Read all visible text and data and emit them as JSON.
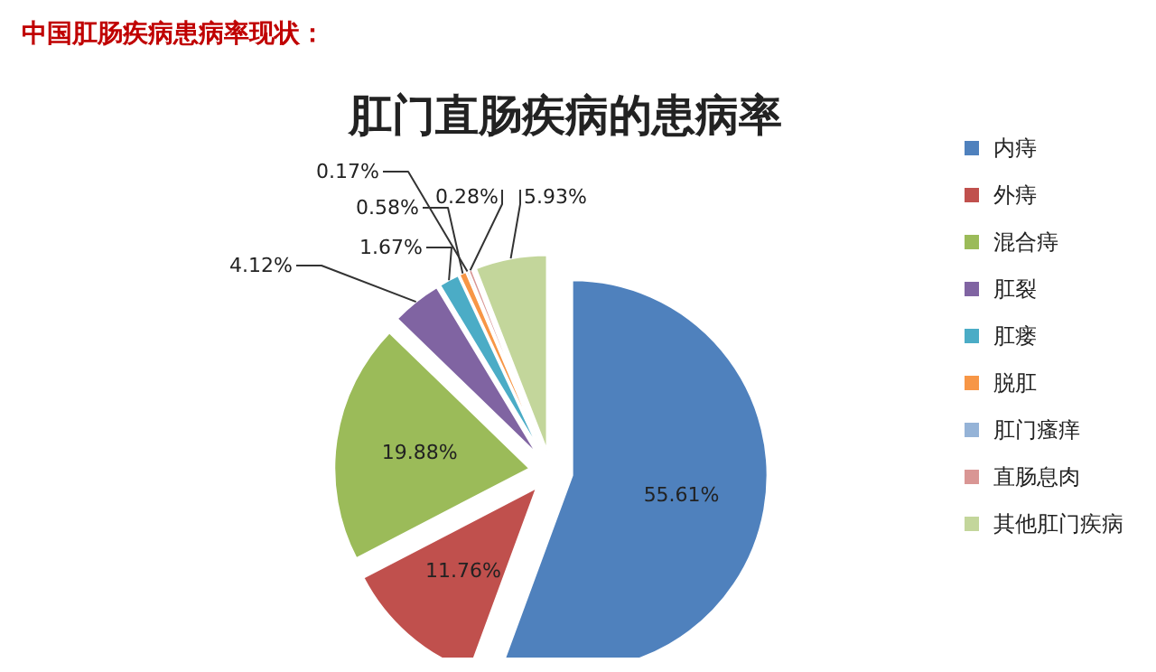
{
  "chart_data": {
    "type": "pie",
    "title": "肛门直肠疾病的患病率",
    "annotations": [
      "中国肛肠疾病患病率现状："
    ],
    "categories": [
      "内痔",
      "外痔",
      "混合痔",
      "肛裂",
      "肛瘘",
      "脱肛",
      "肛门瘙痒",
      "直肠息肉",
      "其他肛门疾病"
    ],
    "values": [
      55.61,
      11.76,
      19.88,
      4.12,
      1.67,
      0.58,
      0.17,
      0.28,
      5.93
    ],
    "value_labels": [
      "55.61%",
      "11.76%",
      "19.88%",
      "4.12%",
      "1.67%",
      "0.58%",
      "0.17%",
      "0.28%",
      "5.93%"
    ],
    "colors": [
      "#4f81bd",
      "#c0504d",
      "#9bbb59",
      "#8064a2",
      "#4bacc6",
      "#f79646",
      "#95b3d7",
      "#d99694",
      "#c3d69b"
    ],
    "legend": "right"
  }
}
